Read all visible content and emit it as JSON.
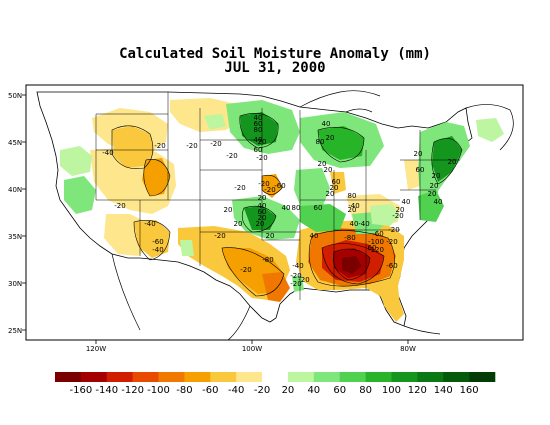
{
  "title": "Calculated Soil Moisture Anomaly (mm)",
  "date": "JUL 31, 2000",
  "latitude_labels": [
    "50N",
    "45N",
    "40N",
    "35N",
    "30N",
    "25N"
  ],
  "longitude_labels": [
    "120W",
    "100W",
    "80W"
  ],
  "colorbar": {
    "levels": [
      "-160",
      "-140",
      "-120",
      "-100",
      "-80",
      "-60",
      "-40",
      "-20",
      "20",
      "40",
      "60",
      "80",
      "100",
      "120",
      "140",
      "160"
    ],
    "colors": [
      "#7a0000",
      "#a50000",
      "#d21e00",
      "#e84b00",
      "#f07800",
      "#f5a000",
      "#fac83c",
      "#fde68c",
      "#ffffff",
      "#bdf5a0",
      "#7ee67a",
      "#50d250",
      "#28b428",
      "#14961e",
      "#0a7814",
      "#055a0a",
      "#033c05"
    ]
  },
  "contour_labels": [
    "-40",
    "-20",
    "-20",
    "-20",
    "-20",
    "-20",
    "-20",
    "-40",
    "-20",
    "-60",
    "-40",
    "-20",
    "-20",
    "-40",
    "-80",
    "-80",
    "-20",
    "-20",
    "-20",
    "-100",
    "-120",
    "-60",
    "-20",
    "-40",
    "-60",
    "-20",
    "-40",
    "-20",
    "40",
    "60",
    "80",
    "20",
    "40",
    "60",
    "40",
    "20",
    "80",
    "20",
    "40",
    "60",
    "20",
    "20",
    "40",
    "20",
    "40",
    "60",
    "80",
    "20",
    "20",
    "60",
    "80",
    "20",
    "40",
    "60",
    "20",
    "40",
    "20",
    "40",
    "20",
    "20",
    "-20",
    "-20",
    "-60",
    "20",
    "20",
    "20",
    "20",
    "60",
    "20",
    "20"
  ]
}
